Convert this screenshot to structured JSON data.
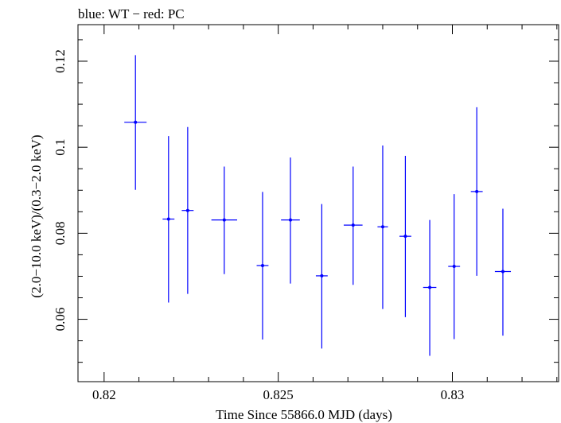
{
  "chart_data": {
    "type": "scatter",
    "title": "blue: WT − red: PC",
    "xlabel": "Time Since 55866.0 MJD (days)",
    "ylabel": "(2.0−10.0 keV)/(0.3−2.0 keV)",
    "xlim": [
      0.81925,
      0.83305
    ],
    "ylim": [
      0.0455,
      0.1285
    ],
    "x_ticks": [
      0.82,
      0.825,
      0.83
    ],
    "x_tick_labels": [
      "0.82",
      "0.825",
      "0.83"
    ],
    "y_ticks": [
      0.06,
      0.08,
      0.1,
      0.12
    ],
    "y_tick_labels": [
      "0.06",
      "0.08",
      "0.1",
      "0.12"
    ],
    "series": [
      {
        "color": "#0000ff",
        "points": [
          {
            "x": 0.8209,
            "y": 0.1058,
            "xerr": 0.00032,
            "ylo": 0.0901,
            "yhi": 0.1214
          },
          {
            "x": 0.82185,
            "y": 0.0833,
            "xerr": 0.00017,
            "ylo": 0.0639,
            "yhi": 0.1026
          },
          {
            "x": 0.8224,
            "y": 0.0853,
            "xerr": 0.00017,
            "ylo": 0.0659,
            "yhi": 0.1047
          },
          {
            "x": 0.82345,
            "y": 0.0831,
            "xerr": 0.00037,
            "ylo": 0.0705,
            "yhi": 0.0955
          },
          {
            "x": 0.82455,
            "y": 0.0725,
            "xerr": 0.00017,
            "ylo": 0.0553,
            "yhi": 0.0896
          },
          {
            "x": 0.82535,
            "y": 0.0831,
            "xerr": 0.00027,
            "ylo": 0.0683,
            "yhi": 0.0976
          },
          {
            "x": 0.82625,
            "y": 0.0701,
            "xerr": 0.00017,
            "ylo": 0.0532,
            "yhi": 0.0868
          },
          {
            "x": 0.82715,
            "y": 0.0819,
            "xerr": 0.00027,
            "ylo": 0.068,
            "yhi": 0.0955
          },
          {
            "x": 0.828,
            "y": 0.0815,
            "xerr": 0.00015,
            "ylo": 0.0624,
            "yhi": 0.1004
          },
          {
            "x": 0.82865,
            "y": 0.0793,
            "xerr": 0.00017,
            "ylo": 0.0605,
            "yhi": 0.098
          },
          {
            "x": 0.82935,
            "y": 0.0674,
            "xerr": 0.00019,
            "ylo": 0.0515,
            "yhi": 0.0831
          },
          {
            "x": 0.83005,
            "y": 0.0723,
            "xerr": 0.00017,
            "ylo": 0.0554,
            "yhi": 0.0891
          },
          {
            "x": 0.8307,
            "y": 0.0897,
            "xerr": 0.00017,
            "ylo": 0.0701,
            "yhi": 0.1093
          },
          {
            "x": 0.83145,
            "y": 0.0711,
            "xerr": 0.00023,
            "ylo": 0.0562,
            "yhi": 0.0857
          }
        ]
      }
    ]
  }
}
